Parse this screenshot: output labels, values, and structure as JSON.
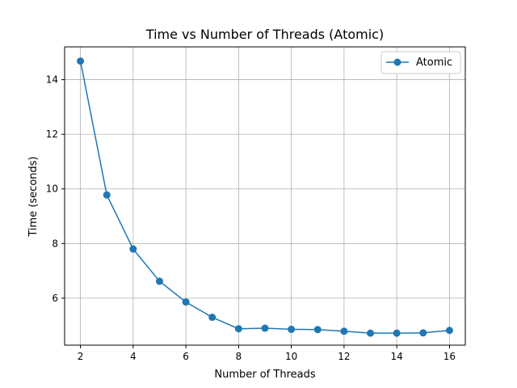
{
  "chart_data": {
    "type": "line",
    "title": "Time vs Number of Threads (Atomic)",
    "xlabel": "Number of Threads",
    "ylabel": "Time (seconds)",
    "xlim": [
      1.4,
      16.6
    ],
    "ylim": [
      4.28,
      15.2
    ],
    "xticks": [
      2,
      4,
      6,
      8,
      10,
      12,
      14,
      16
    ],
    "yticks": [
      6,
      8,
      10,
      12,
      14
    ],
    "grid": true,
    "legend_position": "top-right",
    "series": [
      {
        "name": "Atomic",
        "color": "#1f77b4",
        "marker": "circle",
        "x": [
          2,
          3,
          4,
          5,
          6,
          7,
          8,
          9,
          10,
          11,
          12,
          13,
          14,
          15,
          16
        ],
        "y": [
          14.68,
          9.78,
          7.8,
          6.62,
          5.86,
          5.3,
          4.88,
          4.9,
          4.86,
          4.85,
          4.79,
          4.72,
          4.72,
          4.73,
          4.82
        ]
      }
    ]
  }
}
